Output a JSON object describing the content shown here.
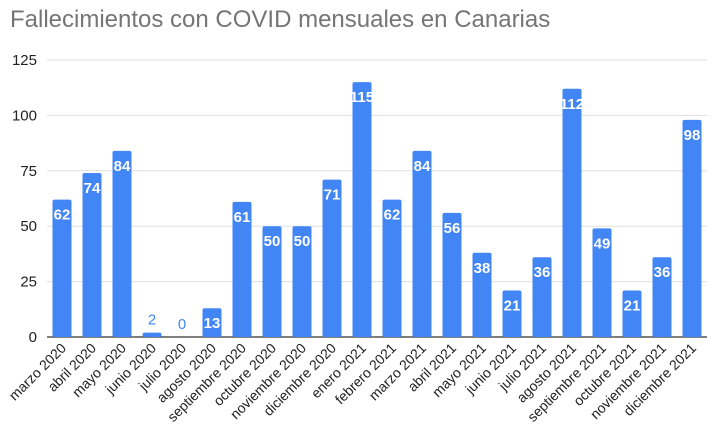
{
  "chart_data": {
    "type": "bar",
    "title": "Fallecimientos con COVID mensuales en Canarias",
    "xlabel": "",
    "ylabel": "",
    "ylim": [
      0,
      125
    ],
    "yticks": [
      0,
      25,
      50,
      75,
      100,
      125
    ],
    "grid": true,
    "legend": "none",
    "categories": [
      "marzo 2020",
      "abril 2020",
      "mayo 2020",
      "junio 2020",
      "julio 2020",
      "agosto 2020",
      "septiembre 2020",
      "octubre 2020",
      "noviembre 2020",
      "diciembre 2020",
      "enero 2021",
      "febrero 2021",
      "marzo 2021",
      "abril 2021",
      "mayo 2021",
      "junio 2021",
      "julio 2021",
      "agosto 2021",
      "septiembre 2021",
      "octubre 2021",
      "noviembre 2021",
      "diciembre 2021"
    ],
    "values": [
      62,
      74,
      84,
      2,
      0,
      13,
      61,
      50,
      50,
      71,
      115,
      62,
      84,
      56,
      38,
      21,
      36,
      112,
      49,
      21,
      36,
      98
    ],
    "colors": {
      "bar": "#4285f4",
      "label_inside": "#ffffff",
      "label_outside": "#4285f4",
      "grid": "#e0e0e0",
      "axis": "#333333",
      "tick_text": "#222222",
      "title": "#757575"
    }
  }
}
